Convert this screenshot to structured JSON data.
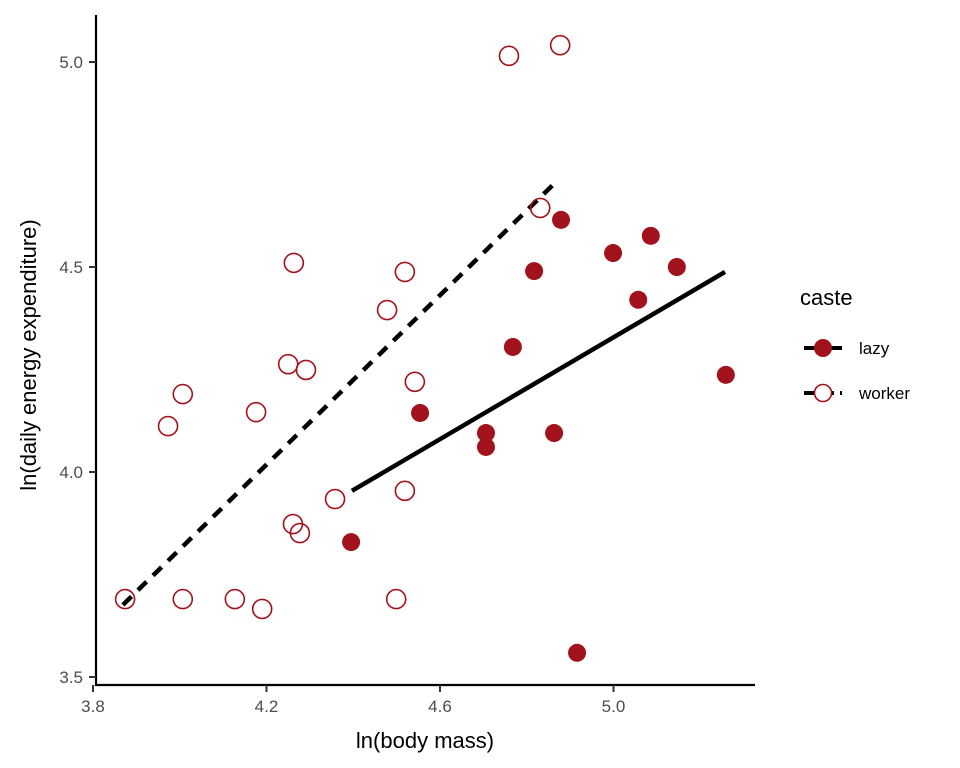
{
  "chart_data": {
    "type": "scatter",
    "title": "",
    "xlabel": "ln(body mass)",
    "ylabel": "ln(daily energy expenditure)",
    "xlim": [
      3.78,
      5.31
    ],
    "ylim": [
      3.48,
      5.12
    ],
    "x_ticks": [
      3.8,
      4.2,
      4.6,
      5.0
    ],
    "x_tick_labels": [
      "3.8",
      "4.2",
      "4.6",
      "5.0"
    ],
    "y_ticks": [
      3.5,
      4.0,
      4.5,
      5.0
    ],
    "y_tick_labels": [
      "3.5",
      "4.0",
      "4.5",
      "5.0"
    ],
    "grid": false,
    "legend": {
      "title": "caste",
      "placement": "right",
      "entries": [
        {
          "label": "lazy",
          "marker": "filled-circle",
          "line": "solid"
        },
        {
          "label": "worker",
          "marker": "open-circle",
          "line": "dashed"
        }
      ]
    },
    "colors": {
      "points": "#A2121C",
      "lines": "#000000",
      "axis": "#000000",
      "tick_text": "#4d4d4d"
    },
    "series": [
      {
        "name": "lazy",
        "marker": "filled-circle",
        "points": [
          [
            4.395,
            3.829
          ],
          [
            4.554,
            4.144
          ],
          [
            4.706,
            4.095
          ],
          [
            4.706,
            4.061
          ],
          [
            4.768,
            4.305
          ],
          [
            4.817,
            4.49
          ],
          [
            4.863,
            4.095
          ],
          [
            4.879,
            4.615
          ],
          [
            4.916,
            3.559
          ],
          [
            4.999,
            4.534
          ],
          [
            5.057,
            4.42
          ],
          [
            5.086,
            4.576
          ],
          [
            5.146,
            4.5
          ],
          [
            5.259,
            4.237
          ]
        ],
        "fit_line": {
          "style": "solid",
          "x": [
            4.397,
            5.257
          ],
          "y": [
            3.954,
            4.488
          ]
        }
      },
      {
        "name": "worker",
        "marker": "open-circle",
        "points": [
          [
            3.874,
            3.69
          ],
          [
            3.973,
            4.112
          ],
          [
            4.007,
            4.19
          ],
          [
            4.007,
            3.69
          ],
          [
            4.176,
            4.146
          ],
          [
            4.127,
            3.69
          ],
          [
            4.19,
            3.666
          ],
          [
            4.25,
            4.263
          ],
          [
            4.263,
            4.51
          ],
          [
            4.261,
            3.873
          ],
          [
            4.277,
            3.851
          ],
          [
            4.291,
            4.249
          ],
          [
            4.358,
            3.934
          ],
          [
            4.478,
            4.395
          ],
          [
            4.519,
            4.488
          ],
          [
            4.519,
            3.954
          ],
          [
            4.542,
            4.22
          ],
          [
            4.499,
            3.69
          ],
          [
            4.759,
            5.015
          ],
          [
            4.877,
            5.041
          ],
          [
            4.831,
            4.644
          ]
        ],
        "fit_line": {
          "style": "dashed",
          "x": [
            3.869,
            4.865
          ],
          "y": [
            3.676,
            4.705
          ]
        }
      }
    ]
  }
}
